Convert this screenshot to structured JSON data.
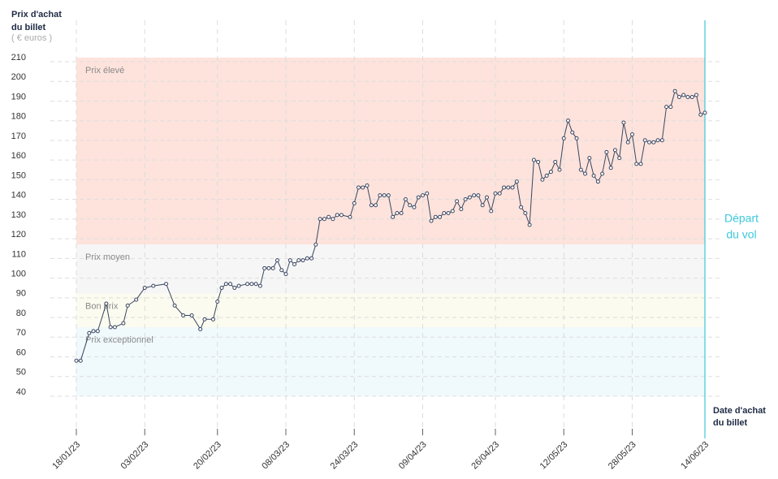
{
  "chart_data": {
    "type": "line",
    "y_label": [
      "Prix d'achat",
      "du billet"
    ],
    "y_unit": "( € euros )",
    "x_label": [
      "Date d'achat",
      "du billet"
    ],
    "departure_label": [
      "Départ",
      "du vol"
    ],
    "departure_color": "#3cc8dc",
    "line_color": "#3a4660",
    "ylim": [
      40,
      210
    ],
    "yticks": [
      40,
      50,
      60,
      70,
      80,
      90,
      100,
      110,
      120,
      130,
      140,
      150,
      160,
      170,
      180,
      190,
      200,
      210
    ],
    "xlim": [
      "18/01/23",
      "14/06/23"
    ],
    "xticks": [
      "18/01/23",
      "03/02/23",
      "20/02/23",
      "08/03/23",
      "24/03/23",
      "09/04/23",
      "26/04/23",
      "12/05/23",
      "28/05/23",
      "14/06/23"
    ],
    "grid": true,
    "bands": [
      {
        "label": "Prix élevé",
        "range": [
          115,
          210
        ],
        "color": "#fde3dc"
      },
      {
        "label": "Prix moyen",
        "range": [
          90,
          115
        ],
        "color": "#f6f6f6"
      },
      {
        "label": "Bon prix",
        "range": [
          73,
          90
        ],
        "color": "#fbfbef"
      },
      {
        "label": "Prix exceptionnel",
        "range": [
          38,
          73
        ],
        "color": "#f0f9fc"
      }
    ],
    "x": [
      "18/01/23",
      "19/01/23",
      "21/01/23",
      "22/01/23",
      "23/01/23",
      "25/01/23",
      "26/01/23",
      "27/01/23",
      "29/01/23",
      "30/01/23",
      "01/02/23",
      "03/02/23",
      "05/02/23",
      "08/02/23",
      "10/02/23",
      "12/02/23",
      "14/02/23",
      "16/02/23",
      "17/02/23",
      "19/02/23",
      "20/02/23",
      "21/02/23",
      "22/02/23",
      "23/02/23",
      "24/02/23",
      "25/02/23",
      "27/02/23",
      "28/02/23",
      "01/03/23",
      "02/03/23",
      "03/03/23",
      "04/03/23",
      "05/03/23",
      "06/03/23",
      "07/03/23",
      "08/03/23",
      "09/03/23",
      "10/03/23",
      "11/03/23",
      "12/03/23",
      "13/03/23",
      "14/03/23",
      "15/03/23",
      "16/03/23",
      "17/03/23",
      "18/03/23",
      "19/03/23",
      "20/03/23",
      "21/03/23",
      "23/03/23",
      "24/03/23",
      "25/03/23",
      "26/03/23",
      "27/03/23",
      "28/03/23",
      "29/03/23",
      "30/03/23",
      "31/03/23",
      "01/04/23",
      "02/04/23",
      "03/04/23",
      "04/04/23",
      "05/04/23",
      "06/04/23",
      "07/04/23",
      "08/04/23",
      "09/04/23",
      "10/04/23",
      "11/04/23",
      "12/04/23",
      "13/04/23",
      "14/04/23",
      "15/04/23",
      "16/04/23",
      "17/04/23",
      "18/04/23",
      "19/04/23",
      "20/04/23",
      "21/04/23",
      "22/04/23",
      "23/04/23",
      "24/04/23",
      "25/04/23",
      "26/04/23",
      "27/04/23",
      "28/04/23",
      "29/04/23",
      "30/04/23",
      "01/05/23",
      "02/05/23",
      "03/05/23",
      "04/05/23",
      "05/05/23",
      "06/05/23",
      "07/05/23",
      "08/05/23",
      "09/05/23",
      "10/05/23",
      "11/05/23",
      "12/05/23",
      "13/05/23",
      "14/05/23",
      "15/05/23",
      "16/05/23",
      "17/05/23",
      "18/05/23",
      "19/05/23",
      "20/05/23",
      "21/05/23",
      "22/05/23",
      "23/05/23",
      "24/05/23",
      "25/05/23",
      "26/05/23",
      "27/05/23",
      "28/05/23",
      "29/05/23",
      "30/05/23",
      "31/05/23",
      "01/06/23",
      "02/06/23",
      "03/06/23",
      "04/06/23",
      "05/06/23",
      "06/06/23",
      "07/06/23",
      "08/06/23",
      "09/06/23",
      "10/06/23",
      "11/06/23",
      "12/06/23",
      "13/06/23",
      "14/06/23"
    ],
    "values": [
      56,
      56,
      70,
      71,
      71,
      85,
      73,
      73,
      75,
      84,
      87,
      93,
      94,
      95,
      84,
      79,
      79,
      72,
      77,
      77,
      86,
      93,
      95,
      95,
      93,
      94,
      95,
      95,
      95,
      94,
      103,
      103,
      103,
      107,
      102,
      100,
      107,
      105,
      107,
      107,
      108,
      108,
      115,
      128,
      128,
      129,
      128,
      130,
      130,
      129,
      136,
      144,
      144,
      145,
      135,
      135,
      140,
      140,
      140,
      129,
      131,
      131,
      138,
      135,
      134,
      139,
      140,
      141,
      127,
      129,
      129,
      131,
      131,
      132,
      137,
      133,
      138,
      139,
      140,
      140,
      135,
      139,
      132,
      141,
      141,
      144,
      144,
      144,
      147,
      134,
      131,
      125,
      158,
      157,
      148,
      150,
      152,
      157,
      153,
      169,
      178,
      172,
      169,
      153,
      151,
      159,
      150,
      147,
      151,
      162,
      154,
      163,
      159,
      177,
      167,
      171,
      156,
      156,
      168,
      167,
      167,
      168,
      168,
      185,
      185,
      193,
      190,
      191,
      190,
      190,
      191,
      181,
      182
    ]
  }
}
